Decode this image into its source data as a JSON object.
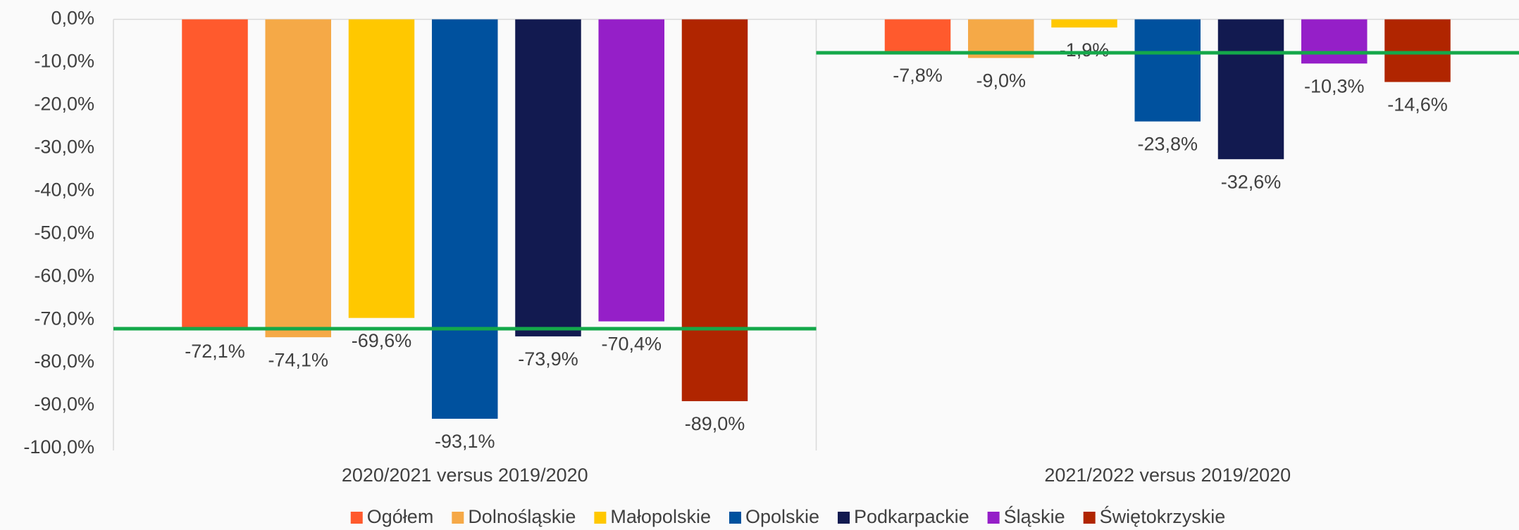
{
  "chart_data": {
    "type": "bar",
    "categories": [
      "2020/2021 versus 2019/2020",
      "2021/2022 versus 2019/2020"
    ],
    "series": [
      {
        "name": "Ogółem",
        "color": "#ff5a2d",
        "values": [
          -72.1,
          -7.8
        ],
        "value_labels": [
          "-72,1%",
          "-7,8%"
        ]
      },
      {
        "name": "Dolnośląskie",
        "color": "#f5a947",
        "values": [
          -74.1,
          -9.0
        ],
        "value_labels": [
          "-74,1%",
          "-9,0%"
        ]
      },
      {
        "name": "Małopolskie",
        "color": "#ffc800",
        "values": [
          -69.6,
          -1.9
        ],
        "value_labels": [
          "-69,6%",
          "-1,9%"
        ]
      },
      {
        "name": "Opolskie",
        "color": "#00519e",
        "values": [
          -93.1,
          -23.8
        ],
        "value_labels": [
          "-93,1%",
          "-23,8%"
        ]
      },
      {
        "name": "Podkarpackie",
        "color": "#121a50",
        "values": [
          -73.9,
          -32.6
        ],
        "value_labels": [
          "-73,9%",
          "-32,6%"
        ]
      },
      {
        "name": "Śląskie",
        "color": "#951fc8",
        "values": [
          -70.4,
          -10.3
        ],
        "value_labels": [
          "-70,4%",
          "-10,3%"
        ]
      },
      {
        "name": "Świętokrzyskie",
        "color": "#b02500",
        "values": [
          -89.0,
          -14.6
        ],
        "value_labels": [
          "-89,0%",
          "-14,6%"
        ]
      }
    ],
    "reference_color": "#14a84a",
    "ylim": [
      -100,
      0
    ],
    "yticks": [
      {
        "value": 0,
        "label": "0,0%"
      },
      {
        "value": -10,
        "label": "-10,0%"
      },
      {
        "value": -20,
        "label": "-20,0%"
      },
      {
        "value": -30,
        "label": "-30,0%"
      },
      {
        "value": -40,
        "label": "-40,0%"
      },
      {
        "value": -50,
        "label": "-50,0%"
      },
      {
        "value": -60,
        "label": "-60,0%"
      },
      {
        "value": -70,
        "label": "-70,0%"
      },
      {
        "value": -80,
        "label": "-80,0%"
      },
      {
        "value": -90,
        "label": "-90,0%"
      },
      {
        "value": -100,
        "label": "-100,0%"
      }
    ],
    "legend": "bottom"
  }
}
